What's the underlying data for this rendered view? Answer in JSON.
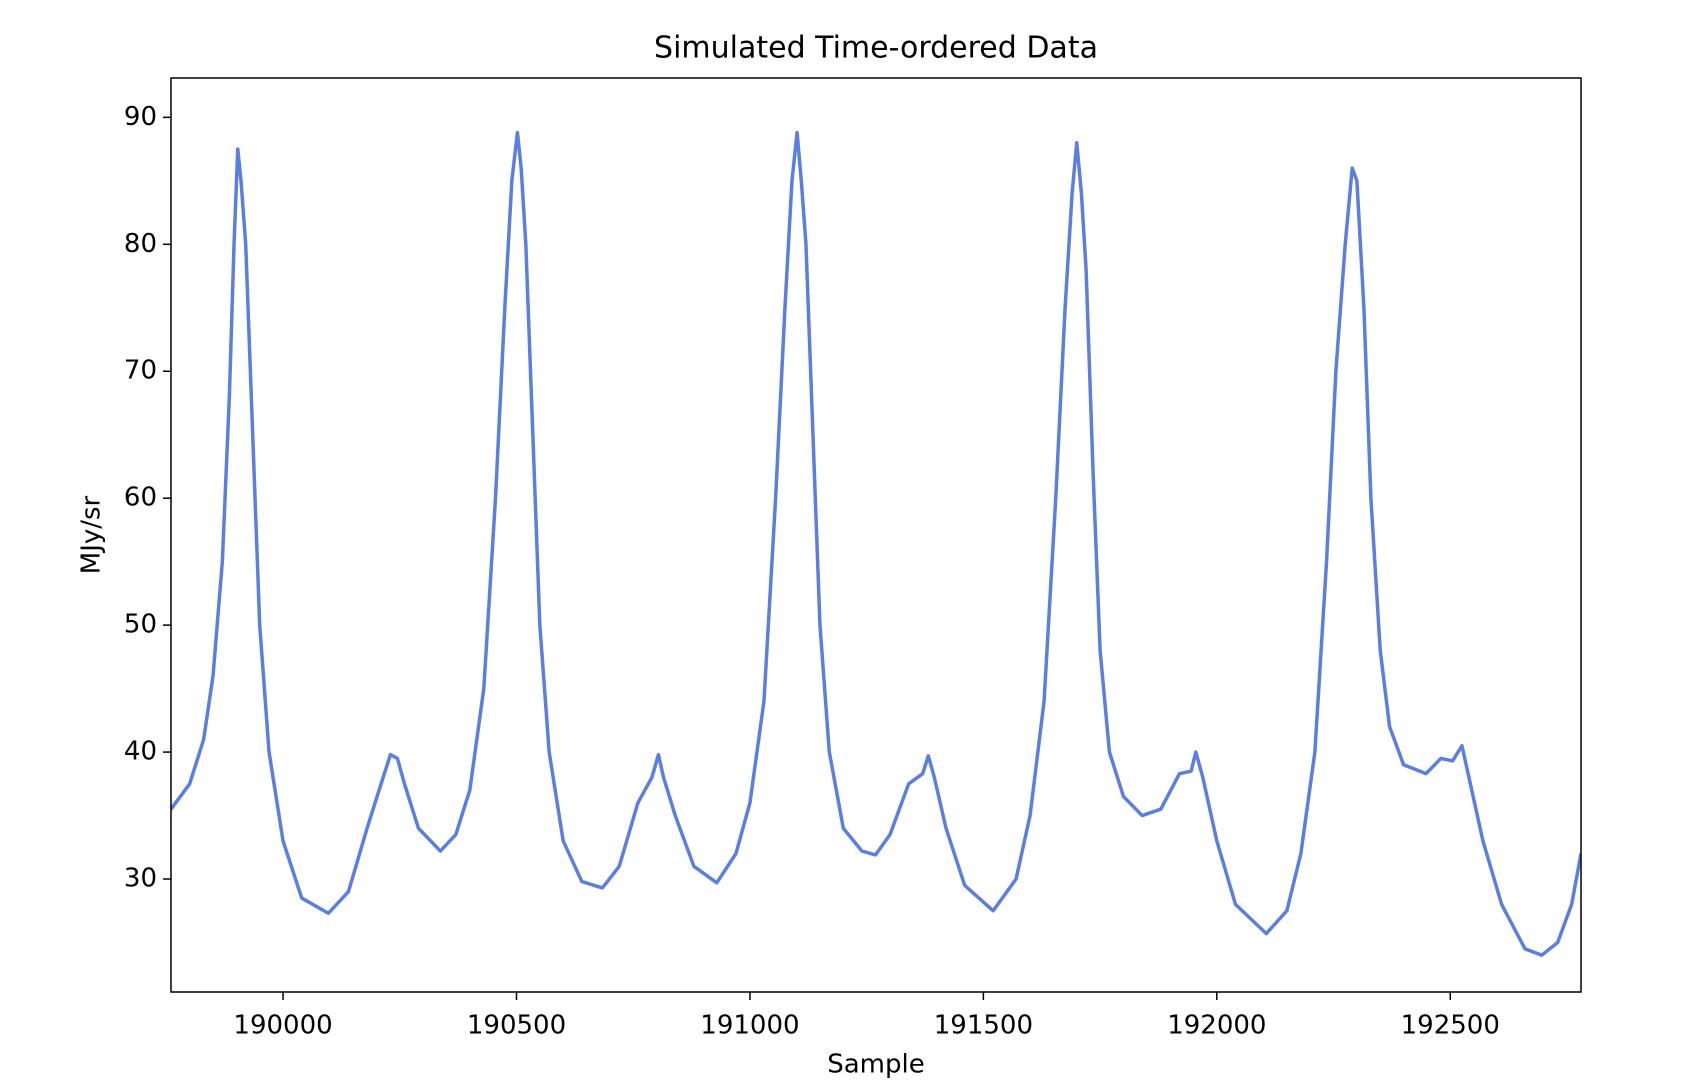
{
  "chart_data": {
    "type": "line",
    "title": "Simulated Time-ordered Data",
    "x_label": "Sample",
    "y_label": "MJy/sr",
    "x": [
      189760,
      189800,
      189830,
      189850,
      189870,
      189885,
      189895,
      189903,
      189910,
      189920,
      189935,
      189950,
      189970,
      190000,
      190040,
      190097,
      190140,
      190180,
      190210,
      190230,
      190245,
      190260,
      190290,
      190337,
      190370,
      190400,
      190430,
      190455,
      190475,
      190490,
      190502,
      190510,
      190520,
      190535,
      190550,
      190570,
      190600,
      190640,
      190684,
      190720,
      190760,
      190790,
      190804,
      190815,
      190840,
      190880,
      190929,
      190970,
      191000,
      191030,
      191055,
      191075,
      191090,
      191101,
      191110,
      191120,
      191135,
      191150,
      191170,
      191200,
      191240,
      191269,
      191300,
      191340,
      191370,
      191382,
      191395,
      191420,
      191460,
      191521,
      191570,
      191600,
      191630,
      191655,
      191675,
      191690,
      191700,
      191710,
      191720,
      191735,
      191750,
      191770,
      191800,
      191840,
      191880,
      191920,
      191945,
      191955,
      191970,
      192000,
      192040,
      192106,
      192150,
      192180,
      192210,
      192235,
      192255,
      192275,
      192290,
      192300,
      192315,
      192330,
      192350,
      192370,
      192400,
      192448,
      192480,
      192505,
      192525,
      192540,
      192570,
      192610,
      192660,
      192696,
      192730,
      192760,
      192780
    ],
    "series": [
      {
        "color": "#5b7fde",
        "values": [
          35.5,
          37.5,
          41,
          46,
          55,
          68,
          80,
          87.5,
          85,
          80,
          65,
          50,
          40,
          33,
          28.5,
          27.3,
          29,
          34,
          37.5,
          39.8,
          39.5,
          37.5,
          34,
          32.2,
          33.5,
          37,
          45,
          60,
          75,
          85,
          88.8,
          86,
          80,
          65,
          50,
          40,
          33,
          29.8,
          29.3,
          31,
          36,
          38,
          39.8,
          38,
          35,
          31,
          29.7,
          32,
          36,
          44,
          60,
          75,
          85,
          88.8,
          85,
          80,
          65,
          50,
          40,
          34,
          32.2,
          31.9,
          33.5,
          37.5,
          38.3,
          39.7,
          38,
          34,
          29.5,
          27.5,
          30,
          35,
          44,
          60,
          75,
          84,
          88,
          84,
          78,
          62,
          48,
          40,
          36.5,
          35,
          35.5,
          38.3,
          38.5,
          40,
          38,
          33,
          28,
          25.7,
          27.5,
          32,
          40,
          55,
          70,
          80,
          86,
          85,
          75,
          60,
          48,
          42,
          39,
          38.3,
          39.5,
          39.3,
          40.5,
          38,
          33,
          28,
          24.5,
          24,
          25,
          28,
          32
        ]
      }
    ],
    "xlim": [
      189760,
      192780
    ],
    "ylim": [
      21.1,
      93.1
    ],
    "xticks": [
      190000,
      190500,
      191000,
      191500,
      192000,
      192500
    ],
    "yticks": [
      30,
      40,
      50,
      60,
      70,
      80,
      90
    ],
    "grid": false
  }
}
